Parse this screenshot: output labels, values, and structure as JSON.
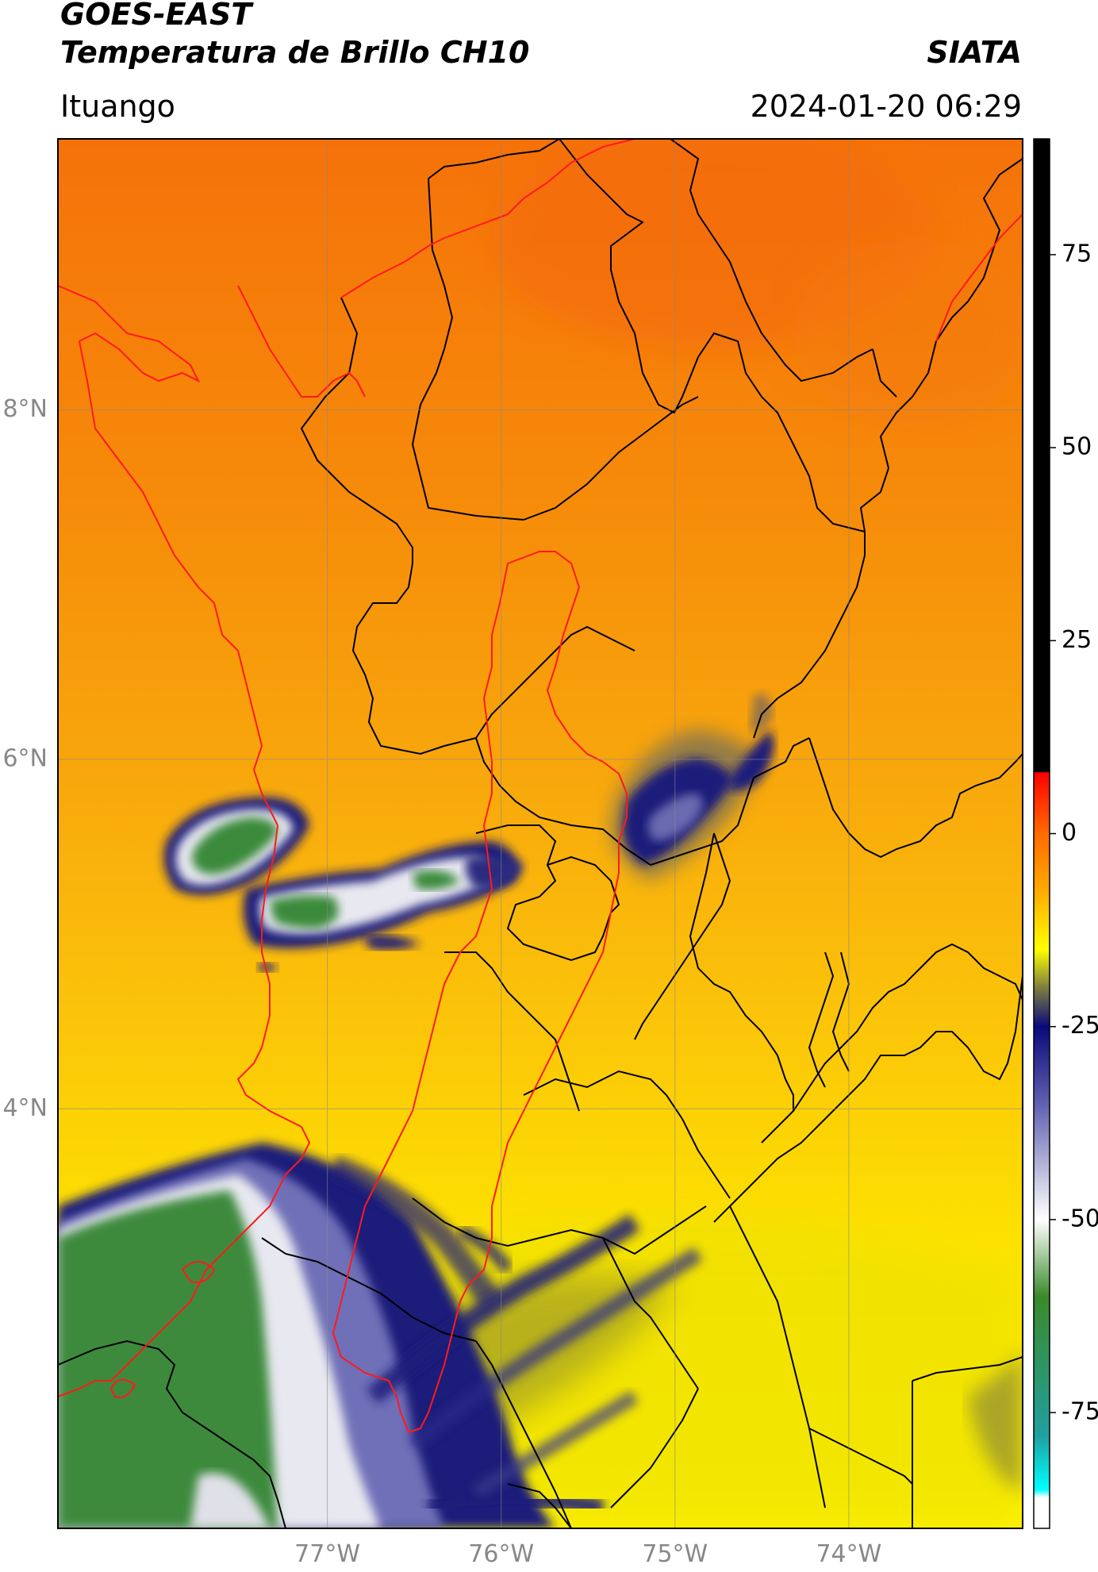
{
  "header": {
    "satellite": "GOES-EAST",
    "product": "Temperatura de Brillo CH10",
    "organization": "SIATA",
    "region": "Ituango",
    "datetime": "2024-01-20 06:29"
  },
  "map": {
    "lon_range": [
      -78.55,
      -73.0
    ],
    "lat_range": [
      1.6,
      9.55
    ],
    "lat_gridlines": [
      8,
      6,
      4
    ],
    "lon_gridlines": [
      -77,
      -76,
      -75,
      -74
    ],
    "lat_labels": [
      "8°N",
      "6°N",
      "4°N"
    ],
    "lon_labels": [
      "77°W",
      "76°W",
      "75°W",
      "74°W"
    ],
    "colors": {
      "warm_top": "#f5750a",
      "warm_mid": "#f8a00a",
      "warm_low": "#fde600",
      "cold_green": "#3a8a3a",
      "cold_white": "#e8e8f0",
      "cold_navy": "#1a1a7a",
      "department_border": "#000000",
      "watershed_border": "#ff1a1a",
      "gridline": "#888888"
    }
  },
  "colorbar": {
    "range": [
      -90,
      90
    ],
    "ticks": [
      "75",
      "50",
      "25",
      "0",
      "-25",
      "-50",
      "-75"
    ],
    "tick_values": [
      75,
      50,
      25,
      0,
      -25,
      -50,
      -75
    ],
    "stops": [
      {
        "value": 90,
        "color": "#000000"
      },
      {
        "value": 8,
        "color": "#000000"
      },
      {
        "value": 7.9,
        "color": "#ff0000"
      },
      {
        "value": 0,
        "color": "#ff6a00"
      },
      {
        "value": -8,
        "color": "#ffb000"
      },
      {
        "value": -15,
        "color": "#ffff00"
      },
      {
        "value": -20,
        "color": "#7d7d40"
      },
      {
        "value": -25,
        "color": "#0a0a7a"
      },
      {
        "value": -35,
        "color": "#6060b0"
      },
      {
        "value": -50,
        "color": "#ffffff"
      },
      {
        "value": -60,
        "color": "#3a8a2a"
      },
      {
        "value": -78,
        "color": "#20a0a0"
      },
      {
        "value": -85,
        "color": "#00ffff"
      },
      {
        "value": -86,
        "color": "#ffffff"
      },
      {
        "value": -90,
        "color": "#ffffff"
      }
    ]
  }
}
